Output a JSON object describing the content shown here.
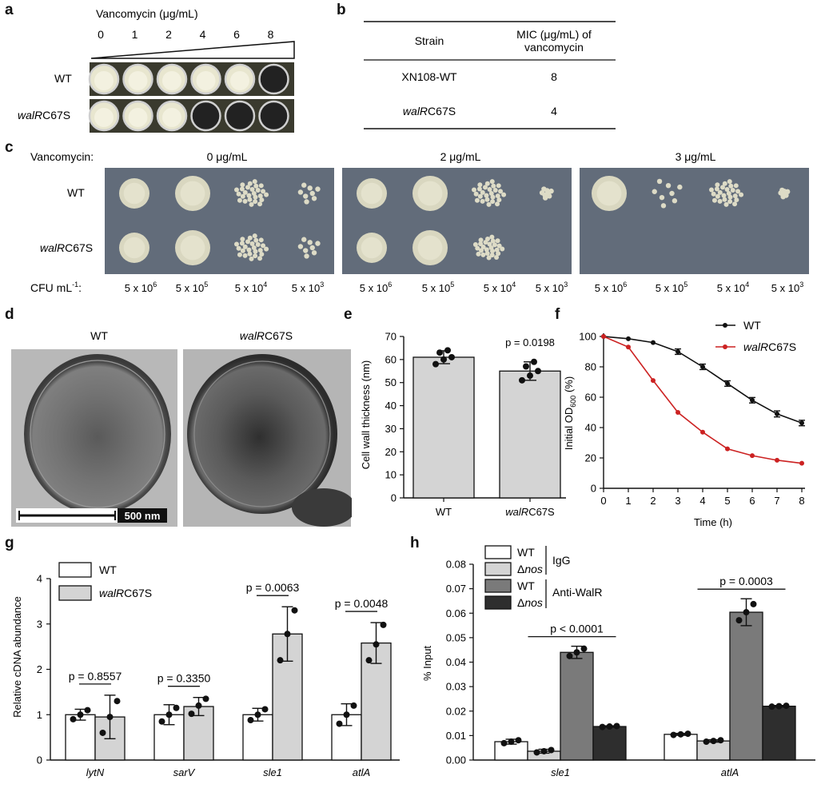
{
  "panels": {
    "a": {
      "letter": "a",
      "title": "Vancomycin (μg/mL)",
      "conc": [
        "0",
        "1",
        "2",
        "4",
        "6",
        "8"
      ],
      "rows": [
        {
          "label_pre": "WT",
          "label_italic": "",
          "label_post": "",
          "wells": [
            "clear",
            "clear",
            "clear",
            "clear",
            "clear",
            "dark"
          ]
        },
        {
          "label_pre": "",
          "label_italic": "walR",
          "label_post": "C67S",
          "wells": [
            "clear",
            "clear",
            "clear",
            "dark",
            "dark",
            "dark"
          ]
        }
      ]
    },
    "b": {
      "letter": "b",
      "col1": "Strain",
      "col2_line1": "MIC (μg/mL) of",
      "col2_line2": "vancomycin",
      "rows": [
        {
          "strain_italic": "",
          "strain": "XN108-WT",
          "mic": "8"
        },
        {
          "strain_italic": "walR",
          "strain": "C67S",
          "mic": "4"
        }
      ]
    },
    "c": {
      "letter": "c",
      "vanco_label": "Vancomycin:",
      "plates": [
        "0 μg/mL",
        "2 μg/mL",
        "3 μg/mL"
      ],
      "row_wt": "WT",
      "row_mut_italic": "walR",
      "row_mut": "C67S",
      "cfu_label": "CFU mL",
      "cfu_sup": "-1",
      "cfu_label_end": ":",
      "dilutions": [
        {
          "base": "5 x 10",
          "exp": "6"
        },
        {
          "base": "5 x 10",
          "exp": "5"
        },
        {
          "base": "5 x 10",
          "exp": "4"
        },
        {
          "base": "5 x 10",
          "exp": "3"
        }
      ]
    },
    "d": {
      "letter": "d",
      "left_title": "WT",
      "right_title_italic": "walR",
      "right_title": "C67S",
      "scale_bar": "500 nm"
    },
    "e": {
      "letter": "e",
      "chart_data": {
        "type": "bar",
        "categories": [
          "WT",
          "walRC67S"
        ],
        "values": [
          61,
          55
        ],
        "errors": [
          2.8,
          4
        ],
        "points": [
          [
            58,
            60,
            61,
            63,
            64
          ],
          [
            51,
            53,
            55,
            57,
            59
          ]
        ],
        "ylabel": "Cell wall thickness (nm)",
        "ylim": [
          0,
          70
        ],
        "yticks": [
          0,
          10,
          20,
          30,
          40,
          50,
          60,
          70
        ],
        "annotation": "p = 0.0198"
      }
    },
    "f": {
      "letter": "f",
      "chart_data": {
        "type": "line",
        "x": [
          0,
          1,
          2,
          3,
          4,
          5,
          6,
          7,
          8
        ],
        "xlabel": "Time (h)",
        "ylabel_pre": "Initial OD",
        "ylabel_sub": "600",
        "ylabel_post": " (%)",
        "ylim": [
          0,
          100
        ],
        "yticks": [
          0,
          20,
          40,
          60,
          80,
          100
        ],
        "series": [
          {
            "name": "WT",
            "color": "#111111",
            "values": [
              100,
              98.5,
              96,
              90,
              80,
              69,
              58,
              49,
              43
            ],
            "errors": [
              0,
              0.8,
              0.8,
              1.8,
              1.8,
              1.8,
              1.8,
              2,
              1.8
            ]
          },
          {
            "name": "walRC67S",
            "name_italic": "walR",
            "name_post": "C67S",
            "color": "#cc2222",
            "values": [
              100,
              93,
              71,
              50,
              37,
              26,
              21.5,
              18.5,
              16.5
            ],
            "errors": [
              0,
              0.8,
              0.8,
              0.8,
              0.8,
              0.8,
              0.8,
              0.8,
              0.8
            ]
          }
        ]
      }
    },
    "g": {
      "letter": "g",
      "chart_data": {
        "type": "bar",
        "categories": [
          "lytN",
          "sarV",
          "sle1",
          "atlA"
        ],
        "ylabel": "Relative cDNA abundance",
        "ylim": [
          0,
          4
        ],
        "yticks": [
          0,
          1,
          2,
          3,
          4
        ],
        "series": [
          {
            "name": "WT",
            "color": "#ffffff",
            "values": [
              1.0,
              1.0,
              1.0,
              1.0
            ],
            "errors": [
              0.12,
              0.22,
              0.14,
              0.24
            ],
            "points": [
              [
                0.9,
                1.0,
                1.1
              ],
              [
                0.85,
                1.0,
                1.15
              ],
              [
                0.88,
                1.0,
                1.12
              ],
              [
                0.8,
                1.0,
                1.2
              ]
            ]
          },
          {
            "name": "walRC67S",
            "name_italic": "walR",
            "name_post": "C67S",
            "color": "#d4d4d4",
            "values": [
              0.95,
              1.18,
              2.78,
              2.58
            ],
            "errors": [
              0.48,
              0.2,
              0.6,
              0.45
            ],
            "points": [
              [
                0.6,
                0.95,
                1.3
              ],
              [
                1.02,
                1.2,
                1.35
              ],
              [
                2.2,
                2.78,
                3.3
              ],
              [
                2.2,
                2.55,
                2.98
              ]
            ]
          }
        ],
        "pvalues": [
          "p = 0.8557",
          "p = 0.3350",
          "p = 0.0063",
          "p = 0.0048"
        ]
      }
    },
    "h": {
      "letter": "h",
      "chart_data": {
        "type": "bar",
        "categories": [
          "sle1",
          "atlA"
        ],
        "ylabel": "% Input",
        "ylim": [
          0,
          0.08
        ],
        "yticks": [
          "0.00",
          "0.01",
          "0.02",
          "0.03",
          "0.04",
          "0.05",
          "0.06",
          "0.07",
          "0.08"
        ],
        "series": [
          {
            "name": "WT",
            "group": "IgG",
            "color": "#ffffff",
            "values": [
              0.0075,
              0.0105
            ],
            "errors": [
              0.001,
              0.0004
            ]
          },
          {
            "name": "Δnos",
            "name_delta": "Δ",
            "name_italic": "nos",
            "group": "IgG",
            "color": "#d4d4d4",
            "values": [
              0.0036,
              0.0078
            ],
            "errors": [
              0.0008,
              0.0005
            ]
          },
          {
            "name": "WT",
            "group": "Anti-WalR",
            "color": "#7a7a7a",
            "values": [
              0.044,
              0.0604
            ],
            "errors": [
              0.0025,
              0.0055
            ]
          },
          {
            "name": "Δnos",
            "name_delta": "Δ",
            "name_italic": "nos",
            "group": "Anti-WalR",
            "color": "#2e2e2e",
            "values": [
              0.0137,
              0.022
            ],
            "errors": [
              0.0003,
              0.0003
            ]
          }
        ],
        "group_labels": [
          "IgG",
          "Anti-WalR"
        ],
        "pvalues": [
          "p < 0.0001",
          "p = 0.0003"
        ]
      }
    }
  }
}
